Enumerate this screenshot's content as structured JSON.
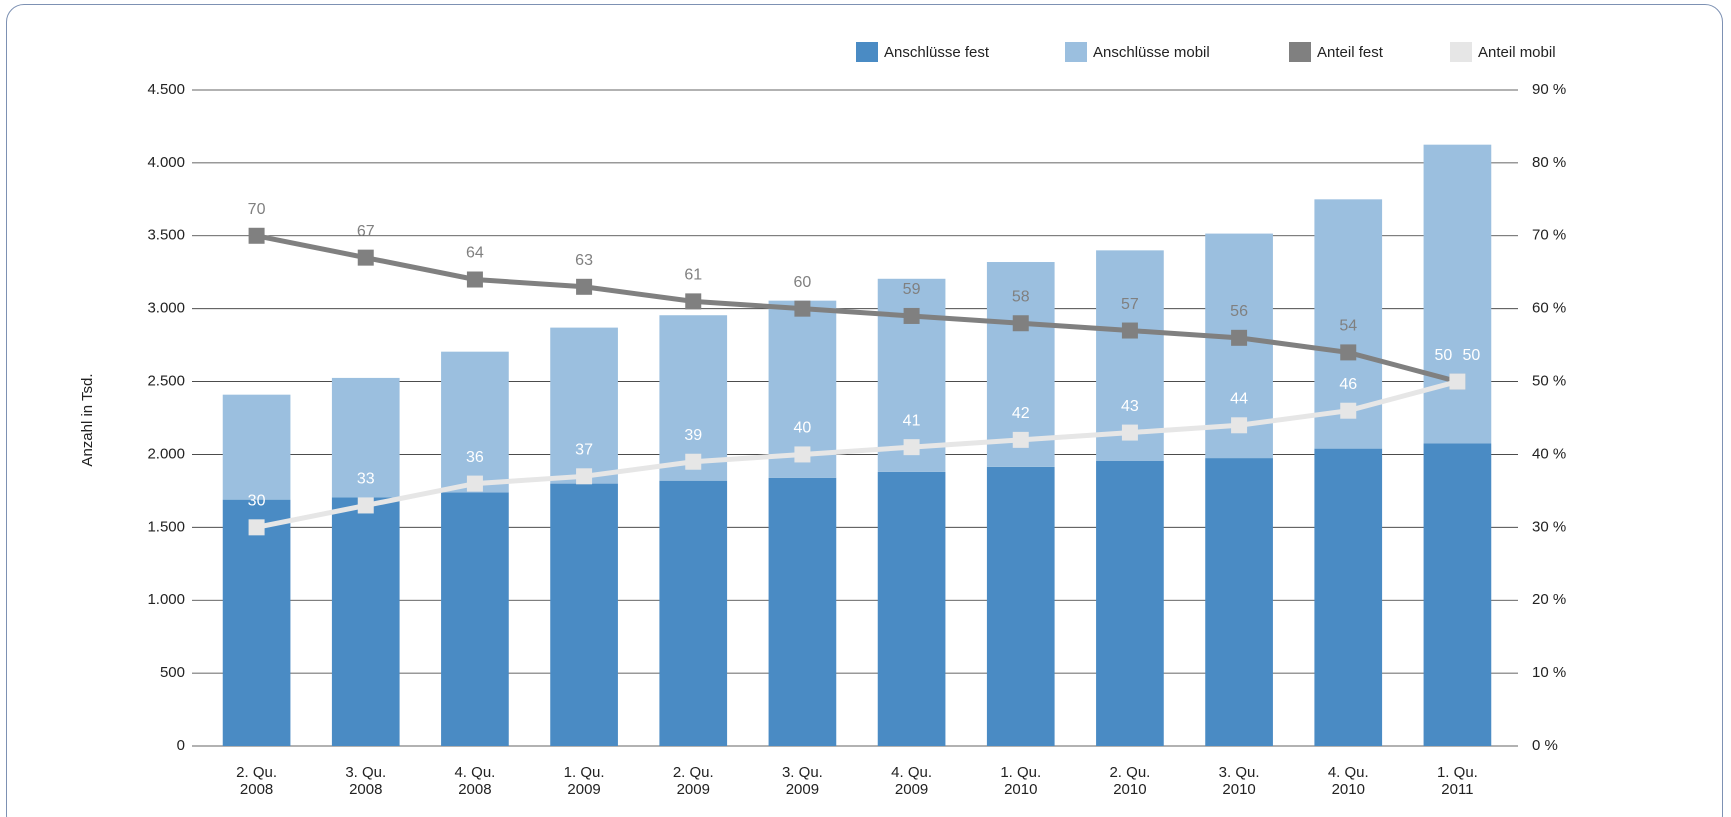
{
  "chart_data": {
    "type": "bar",
    "stacked": true,
    "y_label": "Anzahl in Tsd.",
    "categories": [
      "2. Qu.\n2008",
      "3. Qu.\n2008",
      "4. Qu.\n2008",
      "1. Qu.\n2009",
      "2. Qu.\n2009",
      "3. Qu.\n2009",
      "4. Qu.\n2009",
      "1. Qu.\n2010",
      "2. Qu.\n2010",
      "3. Qu.\n2010",
      "4. Qu.\n2010",
      "1. Qu.\n2011"
    ],
    "series": [
      {
        "name": "Anschlüsse fest",
        "color": "#4a8bc4",
        "values": [
          1690,
          1705,
          1740,
          1800,
          1820,
          1840,
          1880,
          1915,
          1955,
          1975,
          2040,
          2075
        ]
      },
      {
        "name": "Anschlüsse mobil",
        "color": "#9bbfdf",
        "values": [
          720,
          820,
          965,
          1070,
          1135,
          1215,
          1325,
          1405,
          1445,
          1540,
          1710,
          2050
        ]
      },
      {
        "name": "Anteil fest",
        "color": "#808080",
        "axis": "y2",
        "values": [
          70,
          67,
          64,
          63,
          61,
          60,
          59,
          58,
          57,
          56,
          54,
          50
        ]
      },
      {
        "name": "Anteil mobil",
        "color": "#e6e6e6",
        "axis": "y2",
        "values": [
          30,
          33,
          36,
          37,
          39,
          40,
          41,
          42,
          43,
          44,
          46,
          50
        ]
      }
    ],
    "ylim": [
      0,
      4500
    ],
    "yticks": [
      0,
      500,
      {
        "value": 1000,
        "label": "1.000"
      },
      {
        "value": 1500,
        "label": "1.500"
      },
      {
        "value": 2000,
        "label": "2.000"
      },
      {
        "value": 2500,
        "label": "2.500"
      },
      {
        "value": 3000,
        "label": "3.000"
      },
      {
        "value": 3500,
        "label": "3.500"
      },
      {
        "value": 4000,
        "label": "4.000"
      },
      {
        "value": 4500,
        "label": "4.500"
      }
    ],
    "y2lim": [
      0,
      90
    ],
    "y2ticks": [
      {
        "value": 0,
        "label": "0 %"
      },
      {
        "value": 10,
        "label": "10 %"
      },
      {
        "value": 20,
        "label": "20 %"
      },
      {
        "value": 30,
        "label": "30 %"
      },
      {
        "value": 40,
        "label": "40 %"
      },
      {
        "value": 50,
        "label": "50 %"
      },
      {
        "value": 60,
        "label": "60 %"
      },
      {
        "value": 70,
        "label": "70 %"
      },
      {
        "value": 80,
        "label": "80 %"
      },
      {
        "value": 90,
        "label": "90 %"
      }
    ],
    "grid": true,
    "legend": "top-right"
  }
}
